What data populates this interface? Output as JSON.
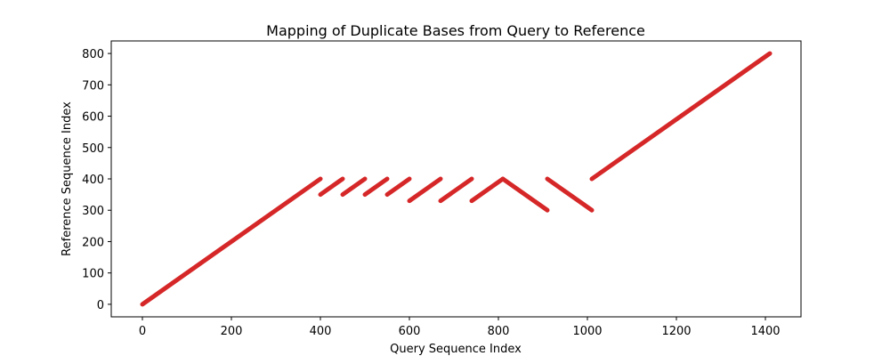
{
  "chart_data": {
    "type": "scatter",
    "title": "Mapping of Duplicate Bases from Query to Reference",
    "xlabel": "Query Sequence Index",
    "ylabel": "Reference Sequence Index",
    "xlim": [
      -70,
      1480
    ],
    "ylim": [
      -40,
      840
    ],
    "xticks": [
      0,
      200,
      400,
      600,
      800,
      1000,
      1200,
      1400
    ],
    "yticks": [
      0,
      100,
      200,
      300,
      400,
      500,
      600,
      700,
      800
    ],
    "grid": false,
    "color": "#d62728",
    "segments": [
      {
        "x": [
          0,
          400
        ],
        "y": [
          0,
          400
        ]
      },
      {
        "x": [
          400,
          450
        ],
        "y": [
          350,
          400
        ]
      },
      {
        "x": [
          450,
          500
        ],
        "y": [
          350,
          400
        ]
      },
      {
        "x": [
          500,
          550
        ],
        "y": [
          350,
          400
        ]
      },
      {
        "x": [
          550,
          600
        ],
        "y": [
          350,
          400
        ]
      },
      {
        "x": [
          600,
          670
        ],
        "y": [
          330,
          400
        ]
      },
      {
        "x": [
          670,
          740
        ],
        "y": [
          330,
          400
        ]
      },
      {
        "x": [
          740,
          810
        ],
        "y": [
          330,
          400
        ]
      },
      {
        "x": [
          810,
          910
        ],
        "y": [
          400,
          300
        ]
      },
      {
        "x": [
          910,
          1010
        ],
        "y": [
          400,
          300
        ]
      },
      {
        "x": [
          1010,
          1410
        ],
        "y": [
          400,
          800
        ]
      }
    ]
  }
}
